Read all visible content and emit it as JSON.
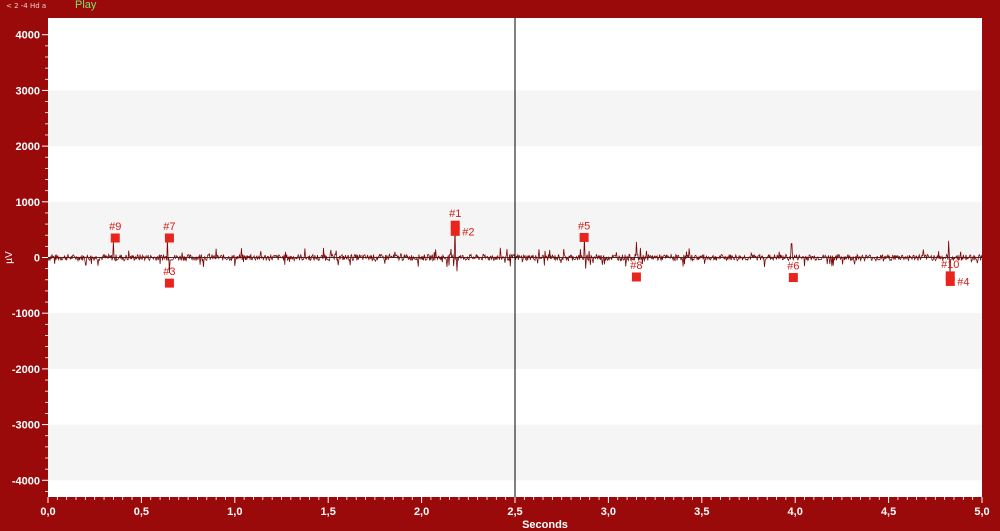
{
  "header": {
    "status_text": "< 2 -4 Hd a",
    "play_label": "Play"
  },
  "colors": {
    "frame": "#9a0a0a",
    "plot_bg": "#ffffff",
    "band_bg": "#f5f5f5",
    "waveform": "#7a0a0a",
    "marker": "#e8241c",
    "marker_label": "#d02018",
    "axis_text": "#ffffff",
    "cursor_line": "#000000"
  },
  "chart_data": {
    "type": "line",
    "title": "",
    "xlabel": "Seconds",
    "ylabel": "µV",
    "xlim": [
      0,
      5.0
    ],
    "ylim": [
      -4300,
      4300
    ],
    "x_ticks": [
      0.0,
      0.5,
      1.0,
      1.5,
      2.0,
      2.5,
      3.0,
      3.5,
      4.0,
      4.5,
      5.0
    ],
    "x_tick_labels": [
      "0,0",
      "0,5",
      "1,0",
      "1,5",
      "2,0",
      "2,5",
      "3,0",
      "3,5",
      "4,0",
      "4,5",
      "5,0"
    ],
    "y_ticks": [
      4000,
      3000,
      2000,
      1000,
      0,
      -1000,
      -2000,
      -3000,
      -4000
    ],
    "y_tick_labels": [
      "4000",
      "3000",
      "2000",
      "1000",
      "0",
      "-1000",
      "-2000",
      "-3000",
      "-4000"
    ],
    "grid_bands": true,
    "cursor_x": 2.5,
    "noise_amplitude": 80,
    "spikes": [
      {
        "x": 0.35,
        "y": 300
      },
      {
        "x": 0.64,
        "y": 350
      },
      {
        "x": 0.65,
        "y": -280
      },
      {
        "x": 1.0,
        "y": -150
      },
      {
        "x": 2.18,
        "y": 580
      },
      {
        "x": 2.19,
        "y": -250
      },
      {
        "x": 2.87,
        "y": 360
      },
      {
        "x": 2.88,
        "y": -200
      },
      {
        "x": 3.15,
        "y": 280
      },
      {
        "x": 3.98,
        "y": 250
      },
      {
        "x": 4.82,
        "y": 300
      },
      {
        "x": 4.83,
        "y": -300
      }
    ],
    "markers": [
      {
        "label": "#9",
        "x": 0.36,
        "y": 350,
        "label_pos": "above"
      },
      {
        "label": "#7",
        "x": 0.65,
        "y": 350,
        "label_pos": "above"
      },
      {
        "label": "#3",
        "x": 0.65,
        "y": -460,
        "label_pos": "above"
      },
      {
        "label": "#1",
        "x": 2.18,
        "y": 580,
        "label_pos": "above"
      },
      {
        "label": "#2",
        "x": 2.18,
        "y": 470,
        "label_pos": "right"
      },
      {
        "label": "#5",
        "x": 2.87,
        "y": 360,
        "label_pos": "above"
      },
      {
        "label": "#8",
        "x": 3.15,
        "y": -350,
        "label_pos": "above"
      },
      {
        "label": "#6",
        "x": 3.99,
        "y": -360,
        "label_pos": "above"
      },
      {
        "label": "#10",
        "x": 4.83,
        "y": -330,
        "label_pos": "above"
      },
      {
        "label": "#4",
        "x": 4.83,
        "y": -430,
        "label_pos": "right"
      }
    ]
  }
}
